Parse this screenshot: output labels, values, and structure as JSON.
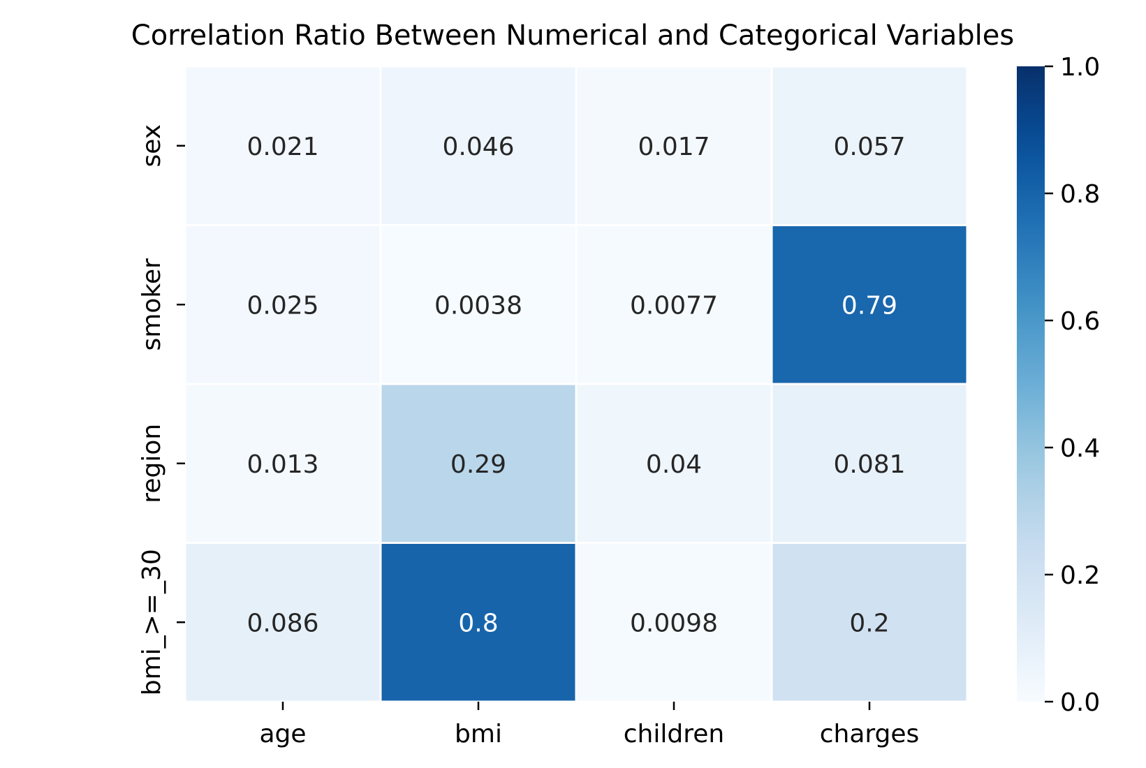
{
  "chart_data": {
    "type": "heatmap",
    "title": "Correlation Ratio Between Numerical and Categorical Variables",
    "xlabel": "",
    "ylabel": "",
    "x_categories": [
      "age",
      "bmi",
      "children",
      "charges"
    ],
    "y_categories": [
      "sex",
      "smoker",
      "region",
      "bmi_>=_30"
    ],
    "values": [
      [
        0.021,
        0.046,
        0.017,
        0.057
      ],
      [
        0.025,
        0.0038,
        0.0077,
        0.79
      ],
      [
        0.013,
        0.29,
        0.04,
        0.081
      ],
      [
        0.086,
        0.8,
        0.0098,
        0.2
      ]
    ],
    "cell_labels": [
      [
        "0.021",
        "0.046",
        "0.017",
        "0.057"
      ],
      [
        "0.025",
        "0.0038",
        "0.0077",
        "0.79"
      ],
      [
        "0.013",
        "0.29",
        "0.04",
        "0.081"
      ],
      [
        "0.086",
        "0.8",
        "0.0098",
        "0.2"
      ]
    ],
    "colorbar": {
      "range": [
        0.0,
        1.0
      ],
      "ticks": [
        "0.0",
        "0.2",
        "0.4",
        "0.6",
        "0.8",
        "1.0"
      ],
      "tick_values": [
        0.0,
        0.2,
        0.4,
        0.6,
        0.8,
        1.0
      ],
      "colormap": "Blues",
      "placement": "right"
    },
    "colors": {
      "cell_border": "#ffffff",
      "dark_text": "#262626",
      "light_text": "#ffffff",
      "low": "#f7fbff",
      "high": "#08306b"
    }
  }
}
